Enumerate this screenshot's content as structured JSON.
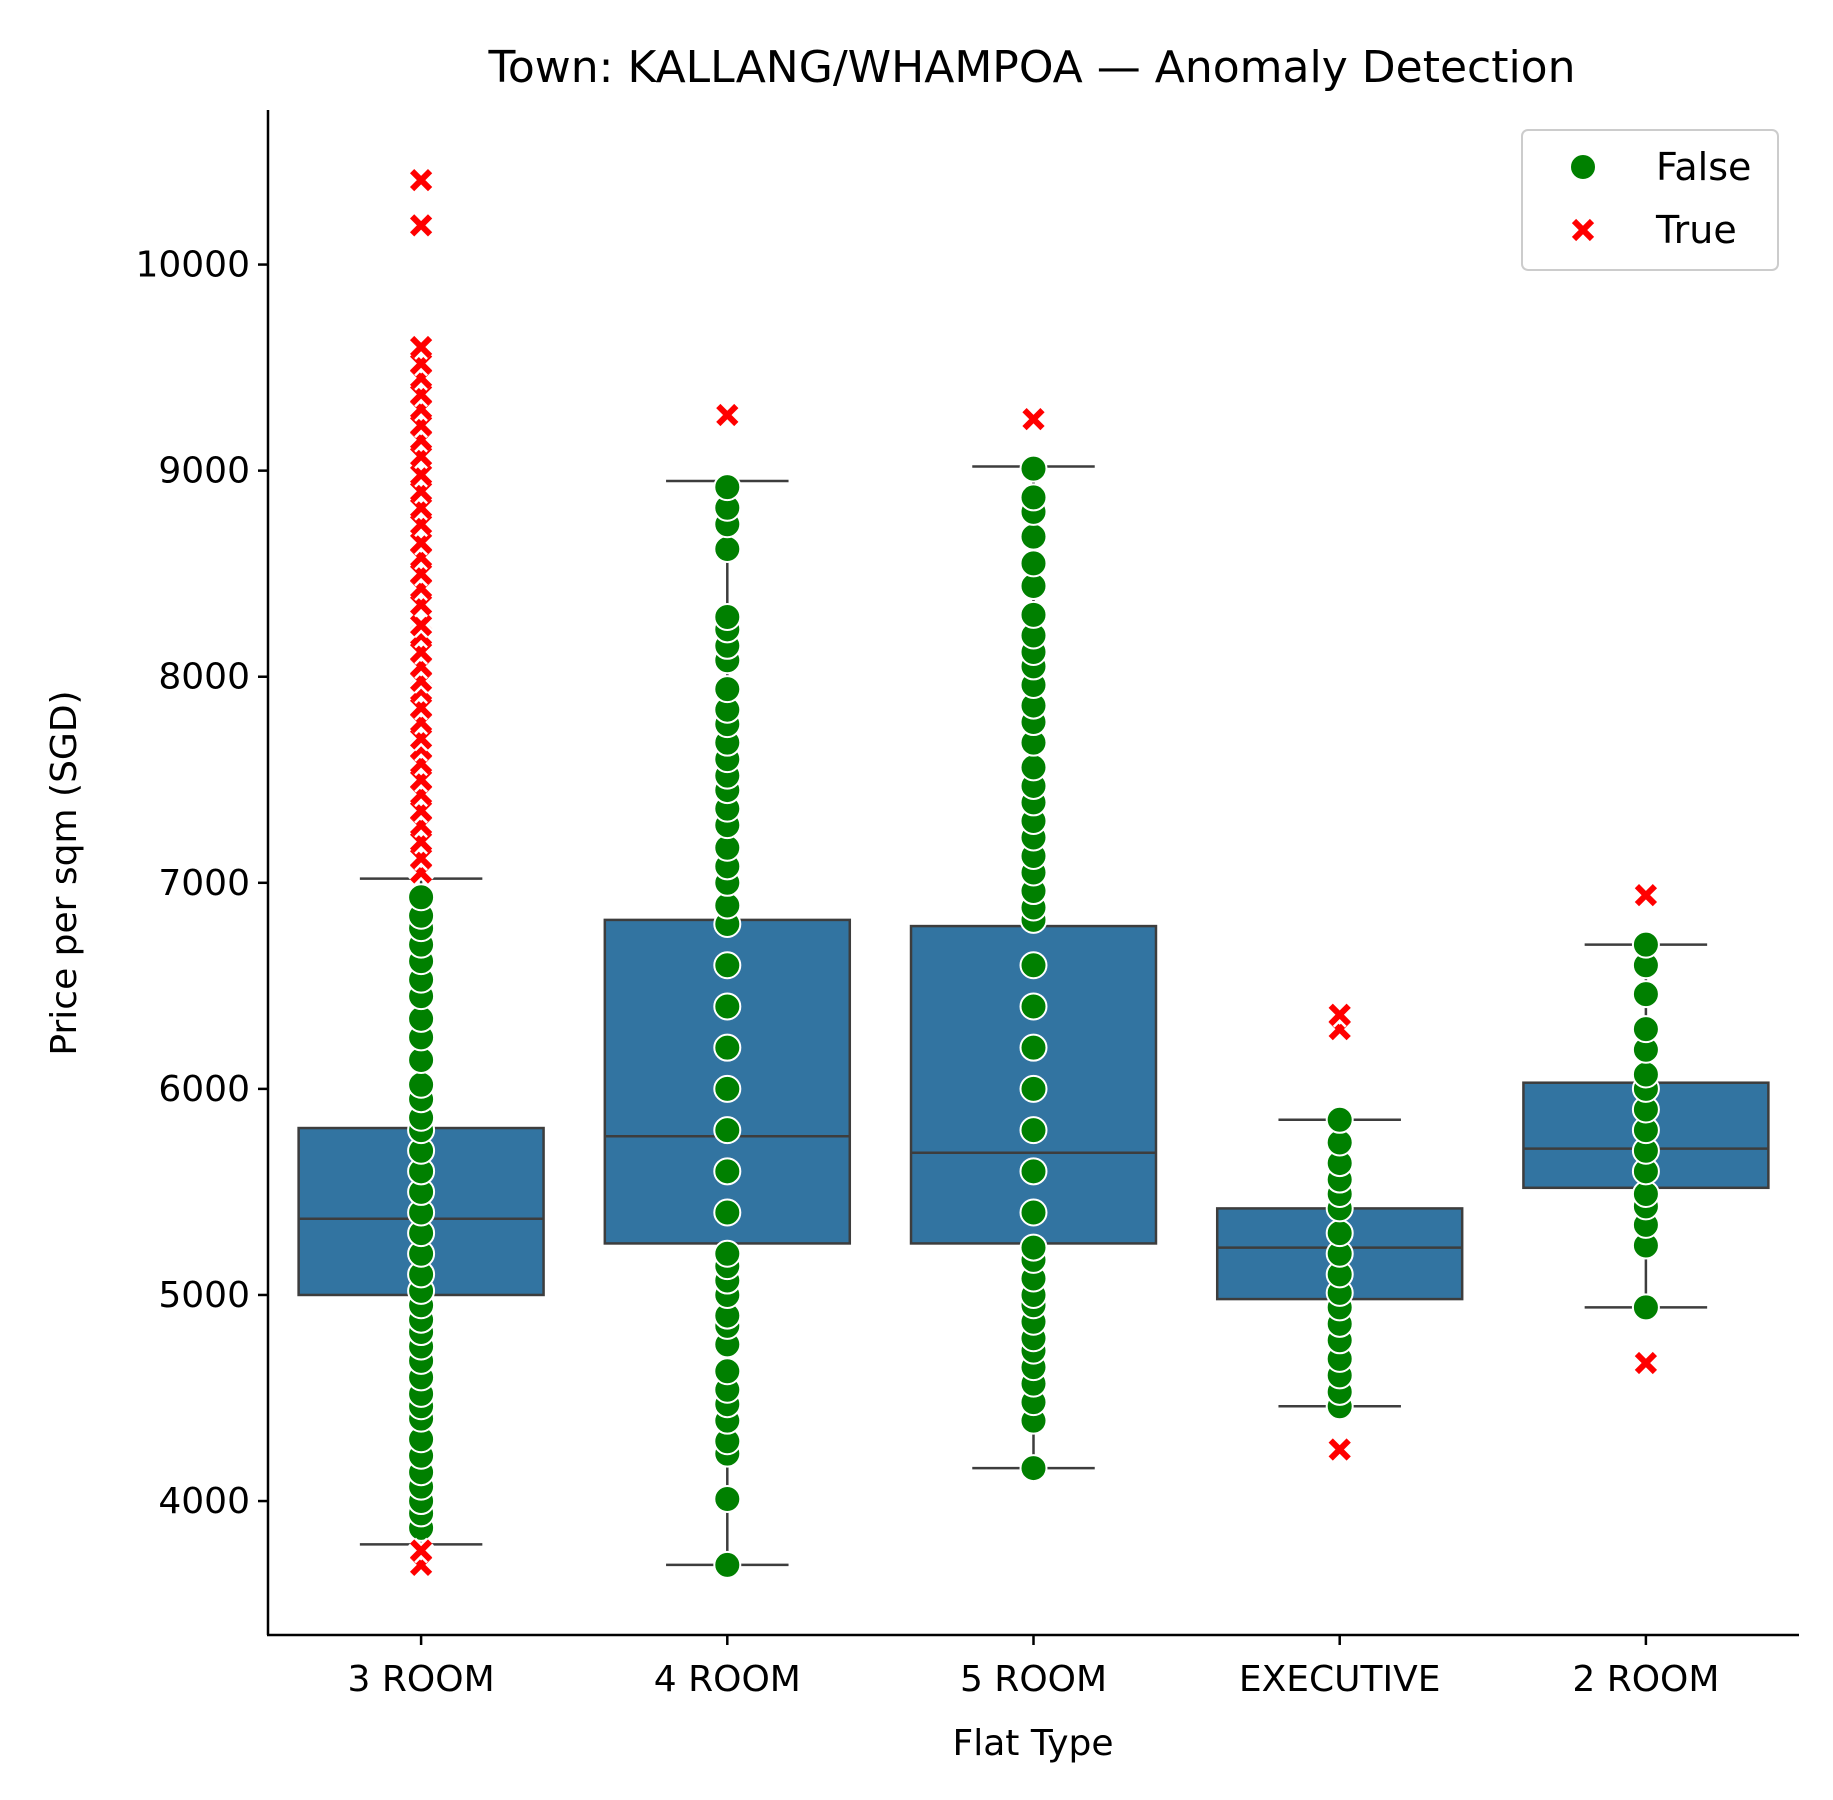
{
  "chart_data": {
    "type": "box",
    "title": "Town: KALLANG/WHAMPOA — Anomaly Detection",
    "xlabel": "Flat Type",
    "ylabel": "Price per sqm (SGD)",
    "categories": [
      "3 ROOM",
      "4 ROOM",
      "5 ROOM",
      "EXECUTIVE",
      "2 ROOM"
    ],
    "ylim": [
      3350,
      10750
    ],
    "yticks": [
      4000,
      5000,
      6000,
      7000,
      8000,
      9000,
      10000
    ],
    "grid": false,
    "legend": {
      "placement": "top-right",
      "entries": [
        {
          "label": "False",
          "marker": "circle",
          "color": "#008000"
        },
        {
          "label": "True",
          "marker": "x",
          "color": "#ff0000"
        }
      ]
    },
    "colors": {
      "box_fill": "#3274a1",
      "box_edge": "#3d3d3d",
      "normal": "#008000",
      "anomaly": "#ff0000"
    },
    "boxes": [
      {
        "category": "3 ROOM",
        "whisker_low": 3790,
        "q1": 5000,
        "median": 5370,
        "q3": 5810,
        "whisker_high": 7020
      },
      {
        "category": "4 ROOM",
        "whisker_low": 3690,
        "q1": 5250,
        "median": 5770,
        "q3": 6820,
        "whisker_high": 8950
      },
      {
        "category": "5 ROOM",
        "whisker_low": 4160,
        "q1": 5250,
        "median": 5690,
        "q3": 6790,
        "whisker_high": 9020
      },
      {
        "category": "EXECUTIVE",
        "whisker_low": 4460,
        "q1": 4980,
        "median": 5230,
        "q3": 5420,
        "whisker_high": 5850
      },
      {
        "category": "2 ROOM",
        "whisker_low": 4940,
        "q1": 5520,
        "median": 5710,
        "q3": 6030,
        "whisker_high": 6700
      }
    ],
    "points": [
      {
        "category": "3 ROOM",
        "anomaly": false,
        "values": [
          3870,
          3940,
          4000,
          4070,
          4140,
          4220,
          4300,
          4400,
          4460,
          4520,
          4600,
          4680,
          4750,
          4820,
          4880,
          4950,
          5020,
          5100,
          5200,
          5300,
          5400,
          5500,
          5600,
          5700,
          5800,
          5860,
          5950,
          6020,
          6140,
          6250,
          6340,
          6450,
          6530,
          6620,
          6700,
          6780,
          6840,
          6930
        ]
      },
      {
        "category": "3 ROOM",
        "anomaly": true,
        "values": [
          3690,
          3760,
          7050,
          7120,
          7200,
          7280,
          7350,
          7430,
          7500,
          7580,
          7650,
          7700,
          7780,
          7850,
          7930,
          7980,
          8050,
          8120,
          8200,
          8250,
          8350,
          8430,
          8500,
          8580,
          8650,
          8740,
          8820,
          8900,
          8980,
          9070,
          9150,
          9220,
          9300,
          9370,
          9450,
          9520,
          9600,
          10190,
          10410
        ]
      },
      {
        "category": "4 ROOM",
        "anomaly": false,
        "values": [
          3690,
          4010,
          4230,
          4290,
          4390,
          4470,
          4540,
          4630,
          4760,
          4850,
          4900,
          5000,
          5070,
          5140,
          5200,
          5400,
          5600,
          5800,
          6000,
          6200,
          6400,
          6600,
          6800,
          6890,
          7000,
          7080,
          7170,
          7280,
          7360,
          7450,
          7520,
          7600,
          7680,
          7770,
          7840,
          7940,
          8080,
          8150,
          8230,
          8290,
          8620,
          8740,
          8820,
          8920
        ]
      },
      {
        "category": "4 ROOM",
        "anomaly": true,
        "values": [
          9270
        ]
      },
      {
        "category": "5 ROOM",
        "anomaly": false,
        "values": [
          4160,
          4390,
          4480,
          4570,
          4650,
          4730,
          4790,
          4870,
          4950,
          5000,
          5080,
          5170,
          5230,
          5400,
          5600,
          5800,
          6000,
          6200,
          6400,
          6600,
          6820,
          6880,
          6960,
          7050,
          7130,
          7220,
          7300,
          7390,
          7470,
          7560,
          7680,
          7780,
          7860,
          7960,
          8050,
          8120,
          8200,
          8300,
          8440,
          8550,
          8680,
          8800,
          8870,
          9010
        ]
      },
      {
        "category": "5 ROOM",
        "anomaly": true,
        "values": [
          9250
        ]
      },
      {
        "category": "EXECUTIVE",
        "anomaly": false,
        "values": [
          4460,
          4530,
          4610,
          4690,
          4780,
          4860,
          4940,
          5010,
          5100,
          5200,
          5300,
          5420,
          5490,
          5560,
          5640,
          5740,
          5850
        ]
      },
      {
        "category": "EXECUTIVE",
        "anomaly": true,
        "values": [
          4250,
          6290,
          6360
        ]
      },
      {
        "category": "2 ROOM",
        "anomaly": false,
        "values": [
          4940,
          5240,
          5340,
          5430,
          5490,
          5600,
          5700,
          5800,
          5900,
          6000,
          6070,
          6190,
          6290,
          6460,
          6600,
          6700
        ]
      },
      {
        "category": "2 ROOM",
        "anomaly": true,
        "values": [
          4670,
          6940
        ]
      }
    ]
  }
}
